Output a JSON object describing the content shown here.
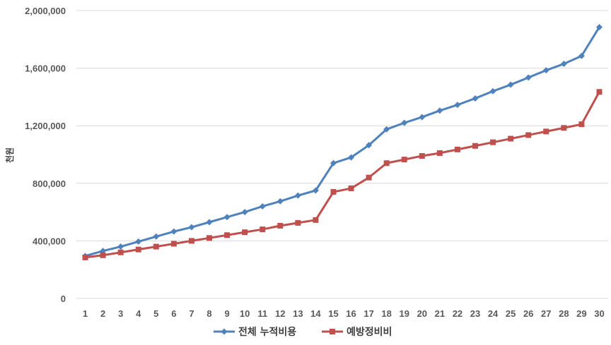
{
  "chart_data": {
    "type": "line",
    "ylabel": "천원",
    "ylim": [
      0,
      2000000
    ],
    "yticks": [
      0,
      400000,
      800000,
      1200000,
      1600000,
      2000000
    ],
    "ytick_labels": [
      "0",
      "400,000",
      "800,000",
      "1,200,000",
      "1,600,000",
      "2,000,000"
    ],
    "x": [
      1,
      2,
      3,
      4,
      5,
      6,
      7,
      8,
      9,
      10,
      11,
      12,
      13,
      14,
      15,
      16,
      17,
      18,
      19,
      20,
      21,
      22,
      23,
      24,
      25,
      26,
      27,
      28,
      29,
      30
    ],
    "x_labels": [
      "1",
      "2",
      "3",
      "4",
      "5",
      "6",
      "7",
      "8",
      "9",
      "10",
      "11",
      "12",
      "13",
      "14",
      "15",
      "16",
      "17",
      "18",
      "19",
      "20",
      "21",
      "22",
      "23",
      "24",
      "25",
      "26",
      "27",
      "28",
      "29",
      "30"
    ],
    "grid": true,
    "legend_position": "bottom",
    "series": [
      {
        "name": "전체 누적비용",
        "color": "#4F81BD",
        "marker": "diamond",
        "values": [
          295000,
          330000,
          360000,
          395000,
          430000,
          465000,
          495000,
          530000,
          565000,
          600000,
          640000,
          675000,
          715000,
          750000,
          940000,
          980000,
          1065000,
          1175000,
          1220000,
          1260000,
          1305000,
          1345000,
          1390000,
          1440000,
          1485000,
          1535000,
          1585000,
          1630000,
          1685000,
          1885000
        ]
      },
      {
        "name": "예방정비비",
        "color": "#C0504D",
        "marker": "square",
        "values": [
          285000,
          300000,
          320000,
          340000,
          360000,
          380000,
          400000,
          420000,
          440000,
          460000,
          480000,
          505000,
          525000,
          545000,
          740000,
          765000,
          840000,
          940000,
          965000,
          990000,
          1010000,
          1035000,
          1060000,
          1085000,
          1110000,
          1135000,
          1160000,
          1185000,
          1210000,
          1435000
        ]
      }
    ]
  }
}
